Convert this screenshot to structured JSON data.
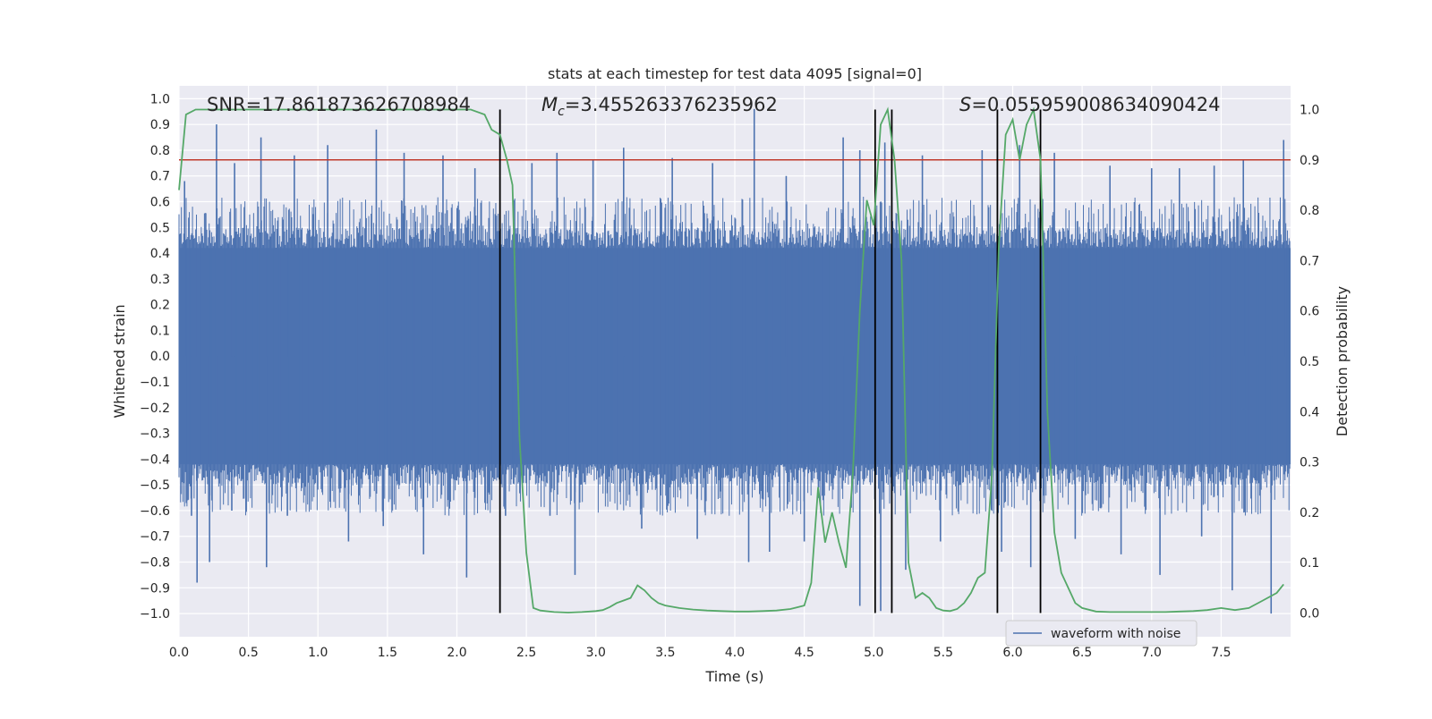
{
  "chart_data": {
    "type": "line",
    "title": "stats at each timestep for test data 4095 [signal=0]",
    "xlabel": "Time (s)",
    "ylabel": "Whitened strain",
    "y2label": "Detection probability",
    "xlim": [
      0,
      8
    ],
    "ylim": [
      -1.09,
      1.05
    ],
    "y2lim": [
      -0.047,
      1.047
    ],
    "xticks": [
      "0.0",
      "0.5",
      "1.0",
      "1.5",
      "2.0",
      "2.5",
      "3.0",
      "3.5",
      "4.0",
      "4.5",
      "5.0",
      "5.5",
      "6.0",
      "6.5",
      "7.0",
      "7.5"
    ],
    "yticks": [
      "1.0",
      "0.9",
      "0.8",
      "0.7",
      "0.6",
      "0.5",
      "0.4",
      "0.3",
      "0.2",
      "0.1",
      "0.0",
      "-0.1",
      "-0.2",
      "-0.3",
      "-0.4",
      "-0.5",
      "-0.6",
      "-0.7",
      "-0.8",
      "-0.9",
      "-1.0"
    ],
    "y2ticks": [
      "1.0",
      "0.9",
      "0.8",
      "0.7",
      "0.6",
      "0.5",
      "0.4",
      "0.3",
      "0.2",
      "0.1",
      "0.0"
    ],
    "grid": true,
    "legend_placement": "lower-right",
    "annotations": {
      "snr": "SNR=17.861873626708984",
      "mc_symbol": "M",
      "mc_sub": "c",
      "mc_value": "=3.455263376235962",
      "s_symbol": "S",
      "s_value": "=0.055959008634090424"
    },
    "threshold": {
      "value": 0.9,
      "axis": "right",
      "color": "#c0392b"
    },
    "vertical_lines": [
      2.31,
      5.01,
      5.13,
      5.89,
      6.2
    ],
    "waveform": {
      "name": "waveform with noise",
      "color": "#4c72b0",
      "envelope_hi": 0.42,
      "envelope_lo": -0.42,
      "spikes": [
        [
          0.04,
          0.68
        ],
        [
          0.27,
          0.9
        ],
        [
          0.4,
          0.75
        ],
        [
          0.59,
          0.85
        ],
        [
          0.83,
          0.78
        ],
        [
          1.07,
          0.82
        ],
        [
          1.42,
          0.88
        ],
        [
          1.62,
          0.79
        ],
        [
          1.9,
          0.78
        ],
        [
          2.13,
          0.73
        ],
        [
          2.54,
          0.75
        ],
        [
          2.72,
          0.79
        ],
        [
          2.98,
          0.76
        ],
        [
          3.2,
          0.81
        ],
        [
          3.55,
          0.77
        ],
        [
          3.84,
          0.75
        ],
        [
          4.14,
          0.96
        ],
        [
          4.37,
          0.7
        ],
        [
          4.78,
          0.85
        ],
        [
          4.9,
          0.8
        ],
        [
          5.08,
          0.83
        ],
        [
          5.35,
          0.78
        ],
        [
          5.78,
          0.8
        ],
        [
          6.05,
          0.82
        ],
        [
          6.3,
          0.79
        ],
        [
          6.7,
          0.74
        ],
        [
          7.0,
          0.73
        ],
        [
          7.2,
          0.73
        ],
        [
          7.45,
          0.74
        ],
        [
          7.66,
          0.76
        ],
        [
          7.95,
          0.84
        ],
        [
          0.09,
          -0.62
        ],
        [
          0.13,
          -0.88
        ],
        [
          0.22,
          -0.8
        ],
        [
          0.38,
          -0.6
        ],
        [
          0.63,
          -0.82
        ],
        [
          0.78,
          -0.62
        ],
        [
          1.22,
          -0.72
        ],
        [
          1.47,
          -0.66
        ],
        [
          1.76,
          -0.77
        ],
        [
          2.07,
          -0.86
        ],
        [
          2.35,
          -0.62
        ],
        [
          2.67,
          -0.62
        ],
        [
          2.85,
          -0.85
        ],
        [
          3.33,
          -0.67
        ],
        [
          3.73,
          -0.71
        ],
        [
          4.1,
          -0.8
        ],
        [
          4.25,
          -0.76
        ],
        [
          4.5,
          -0.72
        ],
        [
          4.9,
          -0.97
        ],
        [
          5.05,
          -0.99
        ],
        [
          5.23,
          -0.83
        ],
        [
          5.48,
          -0.72
        ],
        [
          5.92,
          -0.76
        ],
        [
          6.13,
          -0.82
        ],
        [
          6.45,
          -0.71
        ],
        [
          6.78,
          -0.77
        ],
        [
          7.06,
          -0.85
        ],
        [
          7.36,
          -0.7
        ],
        [
          7.58,
          -0.91
        ],
        [
          7.86,
          -1.0
        ]
      ]
    },
    "detection_probability": {
      "color": "#55a868",
      "x": [
        0,
        0.05,
        0.12,
        0.2,
        0.3,
        0.4,
        0.6,
        0.8,
        1.0,
        1.2,
        1.4,
        1.6,
        1.8,
        2.0,
        2.1,
        2.2,
        2.25,
        2.31,
        2.36,
        2.4,
        2.45,
        2.5,
        2.55,
        2.6,
        2.7,
        2.8,
        2.9,
        3.0,
        3.05,
        3.1,
        3.15,
        3.2,
        3.25,
        3.3,
        3.35,
        3.4,
        3.45,
        3.5,
        3.6,
        3.7,
        3.8,
        3.9,
        4.0,
        4.1,
        4.2,
        4.3,
        4.4,
        4.5,
        4.55,
        4.6,
        4.65,
        4.7,
        4.75,
        4.8,
        4.85,
        4.9,
        4.95,
        5.0,
        5.05,
        5.1,
        5.15,
        5.2,
        5.25,
        5.3,
        5.35,
        5.4,
        5.45,
        5.5,
        5.55,
        5.6,
        5.65,
        5.7,
        5.75,
        5.8,
        5.85,
        5.9,
        5.95,
        6.0,
        6.05,
        6.1,
        6.15,
        6.2,
        6.25,
        6.3,
        6.35,
        6.4,
        6.45,
        6.5,
        6.6,
        6.7,
        6.8,
        6.9,
        7.0,
        7.1,
        7.2,
        7.3,
        7.4,
        7.5,
        7.6,
        7.7,
        7.8,
        7.9,
        7.95
      ],
      "y": [
        0.84,
        0.99,
        1.0,
        1.0,
        1.0,
        1.0,
        1.0,
        1.0,
        1.0,
        1.0,
        1.0,
        1.0,
        1.0,
        1.0,
        1.0,
        0.99,
        0.96,
        0.95,
        0.9,
        0.85,
        0.35,
        0.12,
        0.01,
        0.005,
        0.002,
        0.001,
        0.002,
        0.004,
        0.006,
        0.012,
        0.02,
        0.025,
        0.03,
        0.055,
        0.045,
        0.03,
        0.02,
        0.015,
        0.01,
        0.007,
        0.005,
        0.004,
        0.003,
        0.003,
        0.004,
        0.005,
        0.008,
        0.015,
        0.06,
        0.25,
        0.14,
        0.2,
        0.14,
        0.09,
        0.28,
        0.6,
        0.82,
        0.77,
        0.97,
        1.0,
        0.9,
        0.7,
        0.1,
        0.03,
        0.04,
        0.03,
        0.01,
        0.005,
        0.004,
        0.008,
        0.02,
        0.04,
        0.07,
        0.08,
        0.27,
        0.73,
        0.95,
        0.98,
        0.9,
        0.97,
        1.0,
        0.9,
        0.4,
        0.16,
        0.08,
        0.05,
        0.02,
        0.01,
        0.003,
        0.002,
        0.002,
        0.002,
        0.002,
        0.002,
        0.003,
        0.004,
        0.006,
        0.01,
        0.006,
        0.01,
        0.025,
        0.04,
        0.057
      ]
    }
  }
}
